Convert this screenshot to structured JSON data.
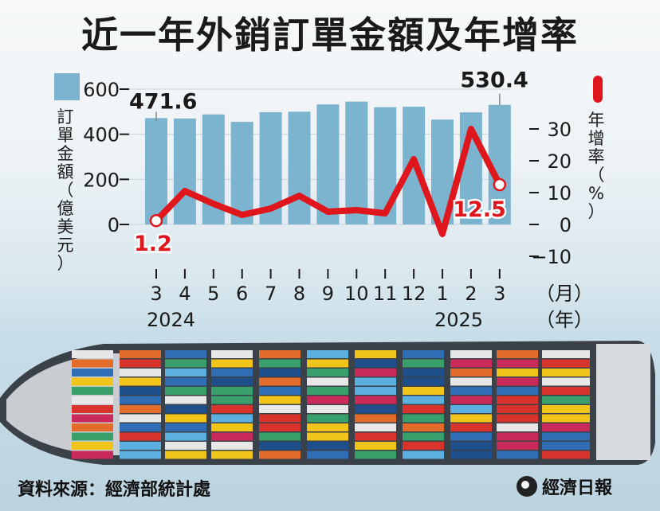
{
  "title": "近一年外銷訂單金額及年增率",
  "source": "資料來源：經濟部統計處",
  "brand": "經濟日報",
  "colors": {
    "bar": "#7cb3cf",
    "line": "#e0161d",
    "text": "#1a1a1a"
  },
  "chart_data": {
    "type": "bar+line",
    "categories": [
      "3",
      "4",
      "5",
      "6",
      "7",
      "8",
      "9",
      "10",
      "11",
      "12",
      "1",
      "2",
      "3"
    ],
    "year_labels": {
      "first": "2024",
      "second": "2025"
    },
    "x_unit": "（月）",
    "x_unit_year": "（年）",
    "series": [
      {
        "name": "訂單金額（億美元）",
        "type": "bar",
        "axis": "left",
        "values": [
          471.6,
          470,
          488,
          455,
          498,
          500,
          532,
          545,
          520,
          522,
          465,
          497,
          530.4
        ]
      },
      {
        "name": "年增率（%）",
        "type": "line",
        "axis": "right",
        "values": [
          1.2,
          10.5,
          6.5,
          3,
          5,
          9,
          4,
          4.5,
          3.5,
          20.5,
          -3,
          30,
          12.5
        ]
      }
    ],
    "left_axis": {
      "label": "訂單金額（億美元）",
      "ticks": [
        "600",
        "400",
        "200",
        "0"
      ],
      "ylim": [
        0,
        600
      ]
    },
    "right_axis": {
      "label": "年增率（%）",
      "ticks": [
        "30",
        "20",
        "10",
        "0",
        "−10"
      ],
      "ylim": [
        -10,
        30
      ]
    },
    "annotations": {
      "bar_first": "471.6",
      "bar_last": "530.4",
      "line_first": "1.2",
      "line_last": "12.5"
    }
  }
}
